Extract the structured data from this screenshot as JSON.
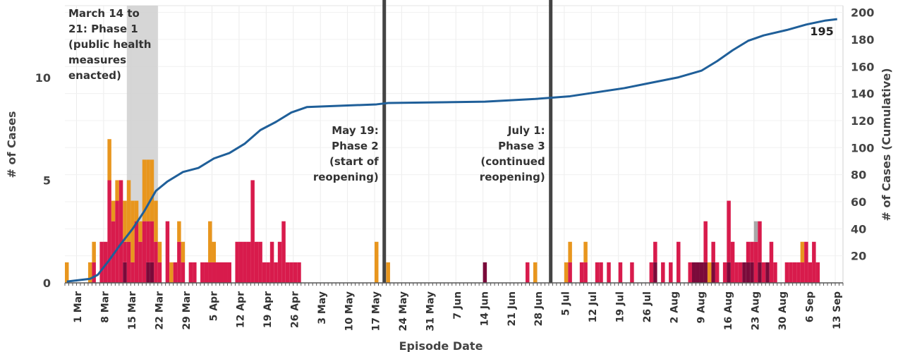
{
  "chart_data": {
    "type": "bar",
    "xlabel": "Episode Date",
    "ylabel_left": "# of Cases",
    "ylabel_right": "# of Cases (Cumulative)",
    "x_range": [
      "2020-02-27",
      "2020-09-15"
    ],
    "ylim_left": [
      0,
      13.5
    ],
    "ylim_right": [
      0,
      205
    ],
    "left_ticks": [
      0,
      5,
      10
    ],
    "right_ticks": [
      20,
      40,
      60,
      80,
      100,
      120,
      140,
      160,
      180,
      200
    ],
    "x_ticks": [
      {
        "date": "2020-03-01",
        "label": "1 Mar"
      },
      {
        "date": "2020-03-08",
        "label": "8 Mar"
      },
      {
        "date": "2020-03-15",
        "label": "15 Mar"
      },
      {
        "date": "2020-03-22",
        "label": "22 Mar"
      },
      {
        "date": "2020-03-29",
        "label": "29 Mar"
      },
      {
        "date": "2020-04-05",
        "label": "5 Apr"
      },
      {
        "date": "2020-04-12",
        "label": "12 Apr"
      },
      {
        "date": "2020-04-19",
        "label": "19 Apr"
      },
      {
        "date": "2020-04-26",
        "label": "26 Apr"
      },
      {
        "date": "2020-05-03",
        "label": "3 May"
      },
      {
        "date": "2020-05-10",
        "label": "10 May"
      },
      {
        "date": "2020-05-17",
        "label": "17 May"
      },
      {
        "date": "2020-05-24",
        "label": "24 May"
      },
      {
        "date": "2020-05-31",
        "label": "31 May"
      },
      {
        "date": "2020-06-07",
        "label": "7 Jun"
      },
      {
        "date": "2020-06-14",
        "label": "14 Jun"
      },
      {
        "date": "2020-06-21",
        "label": "21 Jun"
      },
      {
        "date": "2020-06-28",
        "label": "28 Jun"
      },
      {
        "date": "2020-07-05",
        "label": "5 Jul"
      },
      {
        "date": "2020-07-12",
        "label": "12 Jul"
      },
      {
        "date": "2020-07-19",
        "label": "19 Jul"
      },
      {
        "date": "2020-07-26",
        "label": "26 Jul"
      },
      {
        "date": "2020-08-02",
        "label": "2 Aug"
      },
      {
        "date": "2020-08-09",
        "label": "9 Aug"
      },
      {
        "date": "2020-08-16",
        "label": "16 Aug"
      },
      {
        "date": "2020-08-23",
        "label": "23 Aug"
      },
      {
        "date": "2020-08-30",
        "label": "30 Aug"
      },
      {
        "date": "2020-09-06",
        "label": "6 Sep"
      },
      {
        "date": "2020-09-13",
        "label": "13 Sep"
      }
    ],
    "series_colors": {
      "dark": "#7a0a3a",
      "main": "#d81b4c",
      "orange": "#e8961e",
      "grey": "#a8a8a8",
      "cumulative": "#1f5f99",
      "phase_line": "#444444",
      "phase_band": "#cfcfcf"
    },
    "bars": [
      {
        "date": "2020-02-27",
        "dark": 0,
        "main": 0,
        "orange": 1
      },
      {
        "date": "2020-03-04",
        "dark": 0,
        "main": 0,
        "orange": 1
      },
      {
        "date": "2020-03-05",
        "dark": 0,
        "main": 1,
        "orange": 1
      },
      {
        "date": "2020-03-07",
        "dark": 0,
        "main": 2,
        "orange": 0
      },
      {
        "date": "2020-03-08",
        "dark": 0,
        "main": 2,
        "orange": 0
      },
      {
        "date": "2020-03-09",
        "dark": 0,
        "main": 5,
        "orange": 2
      },
      {
        "date": "2020-03-10",
        "dark": 0,
        "main": 3,
        "orange": 1
      },
      {
        "date": "2020-03-11",
        "dark": 0,
        "main": 4,
        "orange": 1
      },
      {
        "date": "2020-03-12",
        "dark": 0,
        "main": 5,
        "orange": 0
      },
      {
        "date": "2020-03-13",
        "dark": 1,
        "main": 1,
        "orange": 2
      },
      {
        "date": "2020-03-14",
        "dark": 0,
        "main": 2,
        "orange": 3
      },
      {
        "date": "2020-03-15",
        "dark": 0,
        "main": 1,
        "orange": 3
      },
      {
        "date": "2020-03-16",
        "dark": 0,
        "main": 3,
        "orange": 1
      },
      {
        "date": "2020-03-17",
        "dark": 0,
        "main": 2,
        "orange": 1
      },
      {
        "date": "2020-03-18",
        "dark": 0,
        "main": 3,
        "orange": 3
      },
      {
        "date": "2020-03-19",
        "dark": 1,
        "main": 2,
        "orange": 3
      },
      {
        "date": "2020-03-20",
        "dark": 1,
        "main": 2,
        "orange": 3
      },
      {
        "date": "2020-03-21",
        "dark": 0,
        "main": 2,
        "orange": 2
      },
      {
        "date": "2020-03-22",
        "dark": 0,
        "main": 1,
        "orange": 1
      },
      {
        "date": "2020-03-24",
        "dark": 0,
        "main": 3,
        "orange": 0
      },
      {
        "date": "2020-03-25",
        "dark": 0,
        "main": 0,
        "orange": 1
      },
      {
        "date": "2020-03-26",
        "dark": 0,
        "main": 1,
        "orange": 0
      },
      {
        "date": "2020-03-27",
        "dark": 0,
        "main": 2,
        "orange": 1
      },
      {
        "date": "2020-03-28",
        "dark": 0,
        "main": 1,
        "orange": 1
      },
      {
        "date": "2020-03-30",
        "dark": 0,
        "main": 1,
        "orange": 0
      },
      {
        "date": "2020-03-31",
        "dark": 0,
        "main": 1,
        "orange": 0
      },
      {
        "date": "2020-04-02",
        "dark": 0,
        "main": 1,
        "orange": 0
      },
      {
        "date": "2020-04-03",
        "dark": 0,
        "main": 1,
        "orange": 0
      },
      {
        "date": "2020-04-04",
        "dark": 0,
        "main": 1,
        "orange": 2
      },
      {
        "date": "2020-04-05",
        "dark": 0,
        "main": 1,
        "orange": 1
      },
      {
        "date": "2020-04-06",
        "dark": 0,
        "main": 1,
        "orange": 0
      },
      {
        "date": "2020-04-07",
        "dark": 0,
        "main": 1,
        "orange": 0
      },
      {
        "date": "2020-04-08",
        "dark": 0,
        "main": 1,
        "orange": 0
      },
      {
        "date": "2020-04-09",
        "dark": 0,
        "main": 1,
        "orange": 0
      },
      {
        "date": "2020-04-11",
        "dark": 0,
        "main": 2,
        "orange": 0
      },
      {
        "date": "2020-04-12",
        "dark": 0,
        "main": 2,
        "orange": 0
      },
      {
        "date": "2020-04-13",
        "dark": 0,
        "main": 2,
        "orange": 0
      },
      {
        "date": "2020-04-14",
        "dark": 0,
        "main": 2,
        "orange": 0
      },
      {
        "date": "2020-04-15",
        "dark": 0,
        "main": 5,
        "orange": 0
      },
      {
        "date": "2020-04-16",
        "dark": 0,
        "main": 2,
        "orange": 0
      },
      {
        "date": "2020-04-17",
        "dark": 0,
        "main": 2,
        "orange": 0
      },
      {
        "date": "2020-04-18",
        "dark": 0,
        "main": 1,
        "orange": 0
      },
      {
        "date": "2020-04-19",
        "dark": 0,
        "main": 1,
        "orange": 0
      },
      {
        "date": "2020-04-20",
        "dark": 0,
        "main": 2,
        "orange": 0
      },
      {
        "date": "2020-04-21",
        "dark": 0,
        "main": 1,
        "orange": 0
      },
      {
        "date": "2020-04-22",
        "dark": 0,
        "main": 2,
        "orange": 0
      },
      {
        "date": "2020-04-23",
        "dark": 0,
        "main": 3,
        "orange": 0
      },
      {
        "date": "2020-04-24",
        "dark": 0,
        "main": 1,
        "orange": 0
      },
      {
        "date": "2020-04-25",
        "dark": 0,
        "main": 1,
        "orange": 0
      },
      {
        "date": "2020-04-26",
        "dark": 0,
        "main": 1,
        "orange": 0
      },
      {
        "date": "2020-04-27",
        "dark": 0,
        "main": 1,
        "orange": 0
      },
      {
        "date": "2020-05-17",
        "dark": 0,
        "main": 0,
        "orange": 2
      },
      {
        "date": "2020-05-20",
        "dark": 0,
        "main": 0,
        "orange": 1
      },
      {
        "date": "2020-06-14",
        "dark": 1,
        "main": 0,
        "orange": 0
      },
      {
        "date": "2020-06-25",
        "dark": 0,
        "main": 1,
        "orange": 0
      },
      {
        "date": "2020-06-27",
        "dark": 0,
        "main": 0,
        "orange": 1
      },
      {
        "date": "2020-07-05",
        "dark": 0,
        "main": 0,
        "orange": 1
      },
      {
        "date": "2020-07-06",
        "dark": 0,
        "main": 1,
        "orange": 1
      },
      {
        "date": "2020-07-09",
        "dark": 0,
        "main": 1,
        "orange": 0
      },
      {
        "date": "2020-07-10",
        "dark": 0,
        "main": 1,
        "orange": 1
      },
      {
        "date": "2020-07-13",
        "dark": 0,
        "main": 1,
        "orange": 0
      },
      {
        "date": "2020-07-14",
        "dark": 0,
        "main": 1,
        "orange": 0
      },
      {
        "date": "2020-07-16",
        "dark": 0,
        "main": 1,
        "orange": 0
      },
      {
        "date": "2020-07-19",
        "dark": 0,
        "main": 1,
        "orange": 0
      },
      {
        "date": "2020-07-22",
        "dark": 0,
        "main": 1,
        "orange": 0
      },
      {
        "date": "2020-07-27",
        "dark": 0,
        "main": 1,
        "orange": 0
      },
      {
        "date": "2020-07-28",
        "dark": 1,
        "main": 1,
        "orange": 0
      },
      {
        "date": "2020-07-30",
        "dark": 0,
        "main": 1,
        "orange": 0
      },
      {
        "date": "2020-08-01",
        "dark": 0,
        "main": 1,
        "orange": 0
      },
      {
        "date": "2020-08-03",
        "dark": 0,
        "main": 2,
        "orange": 0
      },
      {
        "date": "2020-08-06",
        "dark": 0,
        "main": 1,
        "orange": 0
      },
      {
        "date": "2020-08-07",
        "dark": 1,
        "main": 0,
        "orange": 0
      },
      {
        "date": "2020-08-08",
        "dark": 1,
        "main": 0,
        "orange": 0
      },
      {
        "date": "2020-08-09",
        "dark": 1,
        "main": 0,
        "orange": 0
      },
      {
        "date": "2020-08-10",
        "dark": 1,
        "main": 2,
        "orange": 0
      },
      {
        "date": "2020-08-11",
        "dark": 0,
        "main": 0,
        "orange": 1
      },
      {
        "date": "2020-08-12",
        "dark": 1,
        "main": 1,
        "orange": 0
      },
      {
        "date": "2020-08-13",
        "dark": 0,
        "main": 1,
        "orange": 0
      },
      {
        "date": "2020-08-15",
        "dark": 0,
        "main": 1,
        "orange": 0
      },
      {
        "date": "2020-08-16",
        "dark": 1,
        "main": 3,
        "orange": 0
      },
      {
        "date": "2020-08-17",
        "dark": 0,
        "main": 2,
        "orange": 0
      },
      {
        "date": "2020-08-18",
        "dark": 0,
        "main": 1,
        "orange": 0
      },
      {
        "date": "2020-08-19",
        "dark": 0,
        "main": 1,
        "orange": 0
      },
      {
        "date": "2020-08-20",
        "dark": 1,
        "main": 0,
        "orange": 0
      },
      {
        "date": "2020-08-21",
        "dark": 1,
        "main": 1,
        "orange": 0
      },
      {
        "date": "2020-08-22",
        "dark": 1,
        "main": 1,
        "orange": 0
      },
      {
        "date": "2020-08-23",
        "dark": 0,
        "main": 2,
        "orange": 0,
        "grey": 1
      },
      {
        "date": "2020-08-24",
        "dark": 1,
        "main": 2,
        "orange": 0
      },
      {
        "date": "2020-08-25",
        "dark": 0,
        "main": 1,
        "orange": 0
      },
      {
        "date": "2020-08-26",
        "dark": 1,
        "main": 0,
        "orange": 0
      },
      {
        "date": "2020-08-27",
        "dark": 0,
        "main": 2,
        "orange": 0
      },
      {
        "date": "2020-08-28",
        "dark": 0,
        "main": 1,
        "orange": 0
      },
      {
        "date": "2020-08-31",
        "dark": 0,
        "main": 1,
        "orange": 0
      },
      {
        "date": "2020-09-01",
        "dark": 0,
        "main": 1,
        "orange": 0
      },
      {
        "date": "2020-09-02",
        "dark": 0,
        "main": 1,
        "orange": 0
      },
      {
        "date": "2020-09-03",
        "dark": 0,
        "main": 1,
        "orange": 0
      },
      {
        "date": "2020-09-04",
        "dark": 0,
        "main": 1,
        "orange": 1
      },
      {
        "date": "2020-09-05",
        "dark": 0,
        "main": 2,
        "orange": 0
      },
      {
        "date": "2020-09-06",
        "dark": 0,
        "main": 1,
        "orange": 0
      },
      {
        "date": "2020-09-07",
        "dark": 0,
        "main": 2,
        "orange": 0
      },
      {
        "date": "2020-09-08",
        "dark": 0,
        "main": 1,
        "orange": 0
      }
    ],
    "cumulative": [
      {
        "date": "2020-02-27",
        "value": 1
      },
      {
        "date": "2020-03-04",
        "value": 3
      },
      {
        "date": "2020-03-06",
        "value": 6
      },
      {
        "date": "2020-03-09",
        "value": 17
      },
      {
        "date": "2020-03-12",
        "value": 29
      },
      {
        "date": "2020-03-15",
        "value": 40
      },
      {
        "date": "2020-03-18",
        "value": 53
      },
      {
        "date": "2020-03-21",
        "value": 68
      },
      {
        "date": "2020-03-24",
        "value": 75
      },
      {
        "date": "2020-03-28",
        "value": 82
      },
      {
        "date": "2020-04-01",
        "value": 85
      },
      {
        "date": "2020-04-05",
        "value": 92
      },
      {
        "date": "2020-04-09",
        "value": 96
      },
      {
        "date": "2020-04-13",
        "value": 103
      },
      {
        "date": "2020-04-17",
        "value": 113
      },
      {
        "date": "2020-04-21",
        "value": 119
      },
      {
        "date": "2020-04-25",
        "value": 126
      },
      {
        "date": "2020-04-29",
        "value": 130
      },
      {
        "date": "2020-05-17",
        "value": 132
      },
      {
        "date": "2020-05-20",
        "value": 133
      },
      {
        "date": "2020-06-14",
        "value": 134
      },
      {
        "date": "2020-06-27",
        "value": 136
      },
      {
        "date": "2020-07-06",
        "value": 138
      },
      {
        "date": "2020-07-13",
        "value": 141
      },
      {
        "date": "2020-07-20",
        "value": 144
      },
      {
        "date": "2020-07-27",
        "value": 148
      },
      {
        "date": "2020-08-03",
        "value": 152
      },
      {
        "date": "2020-08-09",
        "value": 157
      },
      {
        "date": "2020-08-13",
        "value": 164
      },
      {
        "date": "2020-08-17",
        "value": 172
      },
      {
        "date": "2020-08-21",
        "value": 179
      },
      {
        "date": "2020-08-25",
        "value": 183
      },
      {
        "date": "2020-08-31",
        "value": 187
      },
      {
        "date": "2020-09-05",
        "value": 191
      },
      {
        "date": "2020-09-10",
        "value": 194
      },
      {
        "date": "2020-09-13",
        "value": 195
      }
    ],
    "end_label": "195",
    "phase_band": {
      "start": "2020-03-14",
      "end": "2020-03-21"
    },
    "phase_lines": [
      {
        "date": "2020-05-19",
        "lines": [
          "May 19:",
          "Phase 2",
          "(start of",
          "reopening)"
        ]
      },
      {
        "date": "2020-07-01",
        "lines": [
          "July 1:",
          "Phase 3",
          "(continued",
          "reopening)"
        ]
      }
    ],
    "phase1_annotation": [
      "March 14 to",
      "21: Phase 1",
      "(public health",
      "measures",
      "enacted)"
    ]
  }
}
